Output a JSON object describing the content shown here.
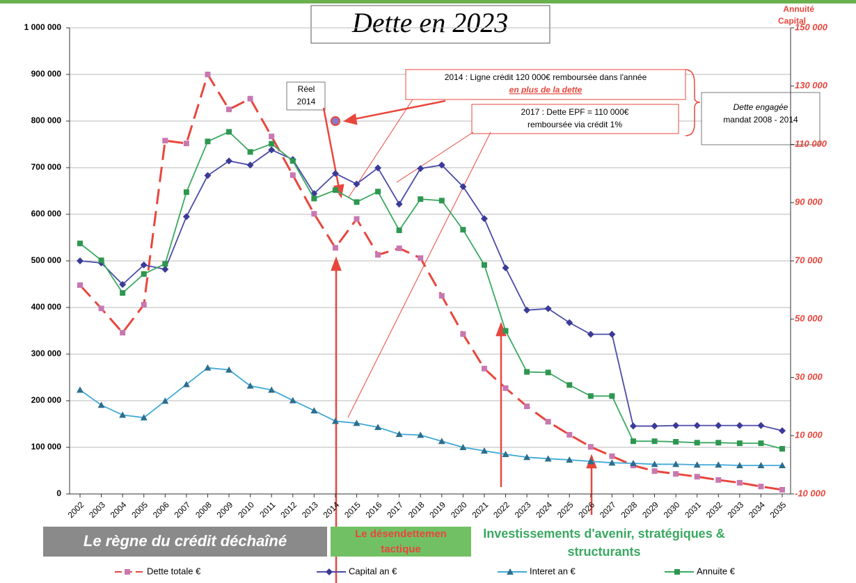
{
  "chart_data": {
    "type": "line",
    "title": "Dette en 2023",
    "y2_label": [
      "Annuité",
      "Capital"
    ],
    "categories": [
      "2002",
      "2003",
      "2004",
      "2005",
      "2006",
      "2007",
      "2008",
      "2009",
      "2010",
      "2011",
      "2012",
      "2013",
      "2014",
      "2015",
      "2016",
      "2017",
      "2018",
      "2019",
      "2020",
      "2021",
      "2022",
      "2023",
      "2024",
      "2025",
      "2026",
      "2027",
      "2028",
      "2029",
      "2030",
      "2031",
      "2032",
      "2033",
      "2034",
      "2035"
    ],
    "ylim": [
      0,
      1000000
    ],
    "yticks": [
      {
        "value": 0,
        "label": "0"
      },
      {
        "value": 100000,
        "label": "100 000"
      },
      {
        "value": 200000,
        "label": "200 000"
      },
      {
        "value": 300000,
        "label": "300 000"
      },
      {
        "value": 400000,
        "label": "400 000"
      },
      {
        "value": 500000,
        "label": "500 000"
      },
      {
        "value": 600000,
        "label": "600 000"
      },
      {
        "value": 700000,
        "label": "700 000"
      },
      {
        "value": 800000,
        "label": "800 000"
      },
      {
        "value": 900000,
        "label": "900 000"
      },
      {
        "value": 1000000,
        "label": "1 000 000"
      }
    ],
    "y2lim": [
      -10000,
      150000
    ],
    "y2ticks": [
      {
        "value": -10000,
        "label": "-10 000"
      },
      {
        "value": 10000,
        "label": "10 000"
      },
      {
        "value": 30000,
        "label": "30 000"
      },
      {
        "value": 50000,
        "label": "50 000"
      },
      {
        "value": 70000,
        "label": "70 000"
      },
      {
        "value": 90000,
        "label": "90 000"
      },
      {
        "value": 110000,
        "label": "110 000"
      },
      {
        "value": 130000,
        "label": "130 000"
      },
      {
        "value": 150000,
        "label": "150 000"
      }
    ],
    "grid": true,
    "series": [
      {
        "name": "Dette totale €",
        "color": "#e8463c",
        "marker_color": "#c878b0",
        "marker": "square",
        "dash": true,
        "values": [
          448000,
          398000,
          346000,
          406000,
          758000,
          752000,
          900000,
          825000,
          848000,
          767000,
          684000,
          601000,
          528000,
          590000,
          513000,
          527000,
          506000,
          425000,
          343000,
          269000,
          227000,
          188000,
          155000,
          127000,
          101000,
          81000,
          61000,
          49000,
          43000,
          37000,
          30000,
          24000,
          16000,
          9000
        ]
      },
      {
        "name": "Capital an €",
        "color": "#4a4aa8",
        "marker_color": "#3a3a98",
        "marker": "diamond",
        "axis": "y2",
        "values": [
          70000,
          69300,
          61900,
          68600,
          67100,
          85200,
          99300,
          104300,
          102900,
          108100,
          104800,
          93100,
          100000,
          96400,
          101900,
          89500,
          101700,
          102900,
          95500,
          84500,
          67600,
          53100,
          53600,
          48800,
          44800,
          44800,
          13300,
          13300,
          13500,
          13500,
          13500,
          13500,
          13500,
          11700
        ]
      },
      {
        "name": "Interet an €",
        "color": "#40a8d8",
        "marker_color": "#2c6e8c",
        "marker": "triangle",
        "axis": "y2",
        "values": [
          25700,
          20500,
          17100,
          16200,
          21900,
          27600,
          33300,
          32600,
          27100,
          25700,
          22100,
          18600,
          15000,
          14300,
          12900,
          10500,
          10200,
          8100,
          6000,
          4800,
          3600,
          2600,
          2100,
          1700,
          1200,
          700,
          500,
          200,
          200,
          0,
          0,
          -200,
          -200,
          -200
        ]
      },
      {
        "name": "Annuite €",
        "color": "#3aa860",
        "marker_color": "#2e9650",
        "marker": "square",
        "axis": "y2",
        "values": [
          76000,
          70200,
          59000,
          65500,
          69000,
          93600,
          111000,
          114300,
          107400,
          110200,
          104300,
          91400,
          94300,
          90200,
          93800,
          80500,
          91200,
          90700,
          80700,
          68600,
          46000,
          31900,
          31700,
          27400,
          23600,
          23600,
          8100,
          8100,
          7900,
          7600,
          7600,
          7400,
          7400,
          5500
        ]
      }
    ],
    "reel_2014": {
      "label": [
        "Réel",
        "2014"
      ],
      "category": "2014",
      "value": 800000
    },
    "notes": [
      {
        "lines": [
          "2014 : Ligne crédit  120 000€ remboursée dans l'année"
        ],
        "highlight": "en plus de la dette"
      },
      {
        "lines": [
          "2017 : Dette EPF = 110  000€",
          "remboursée via crédit 1%"
        ]
      },
      {
        "lines": [
          "Dette engagée",
          "mandat 2008  - 2014"
        ]
      }
    ],
    "banners": [
      "Le règne du crédit déchaîné",
      "Le désendettemen",
      "tactique",
      "Investissements d'avenir, stratégiques &",
      "structurants"
    ]
  }
}
